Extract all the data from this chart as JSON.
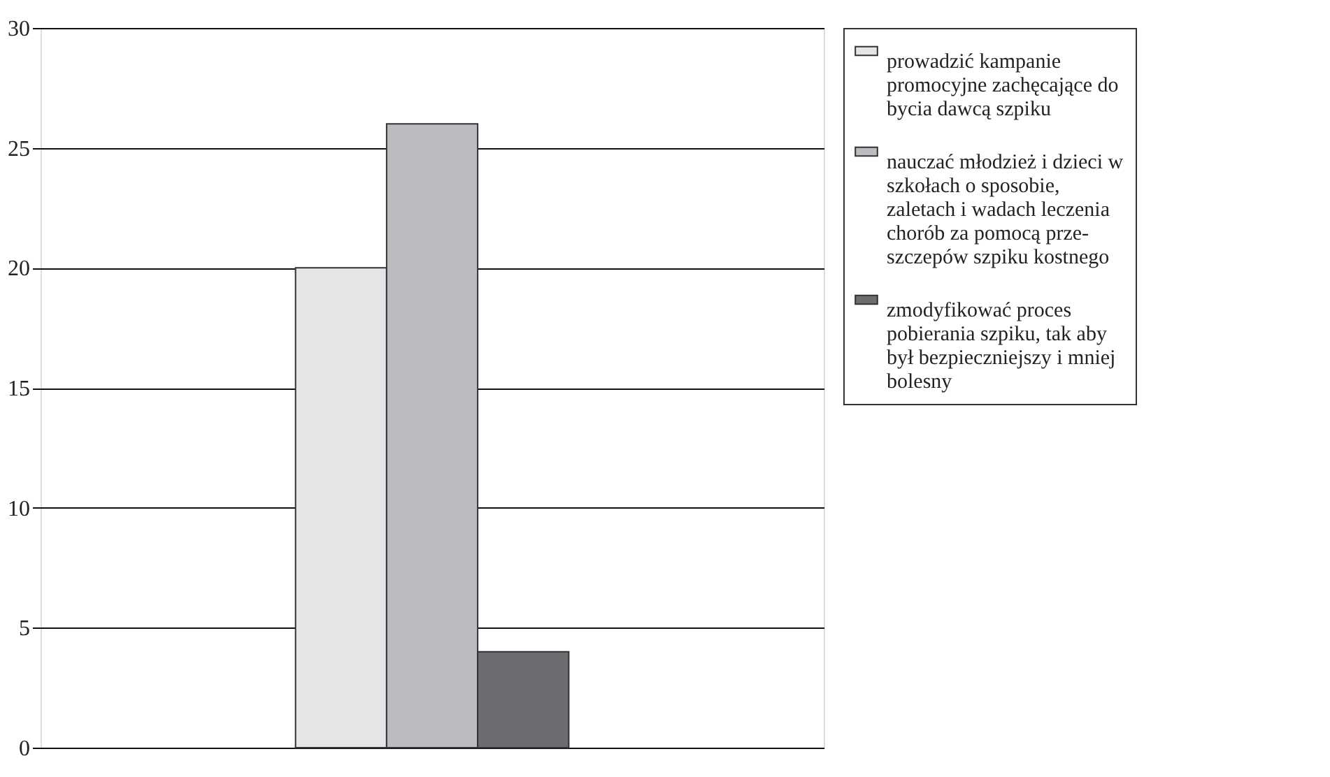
{
  "chart_data": {
    "type": "bar",
    "categories": [
      null
    ],
    "series": [
      {
        "name": "prowadzić kampanie promocyjne zachęcające do bycia dawcą szpiku",
        "color": "#e4e5e7",
        "values": [
          20
        ]
      },
      {
        "name": "nauczać młodzież i dzieci w szkołach o sposobie, zaletach i wadach leczenia chorób za pomocą prze- szczepów szpiku kostnego",
        "color": "#bbbcc0",
        "values": [
          26
        ]
      },
      {
        "name": "zmodyfikować proces pobierania szpiku, tak aby był bezpieczniejszy i mniej bolesny",
        "color": "#6c6d71",
        "values": [
          4
        ]
      }
    ],
    "ylim": [
      0,
      30
    ],
    "yticks": [
      0,
      5,
      10,
      15,
      20,
      25,
      30
    ],
    "grid": "y",
    "legend": "right"
  }
}
